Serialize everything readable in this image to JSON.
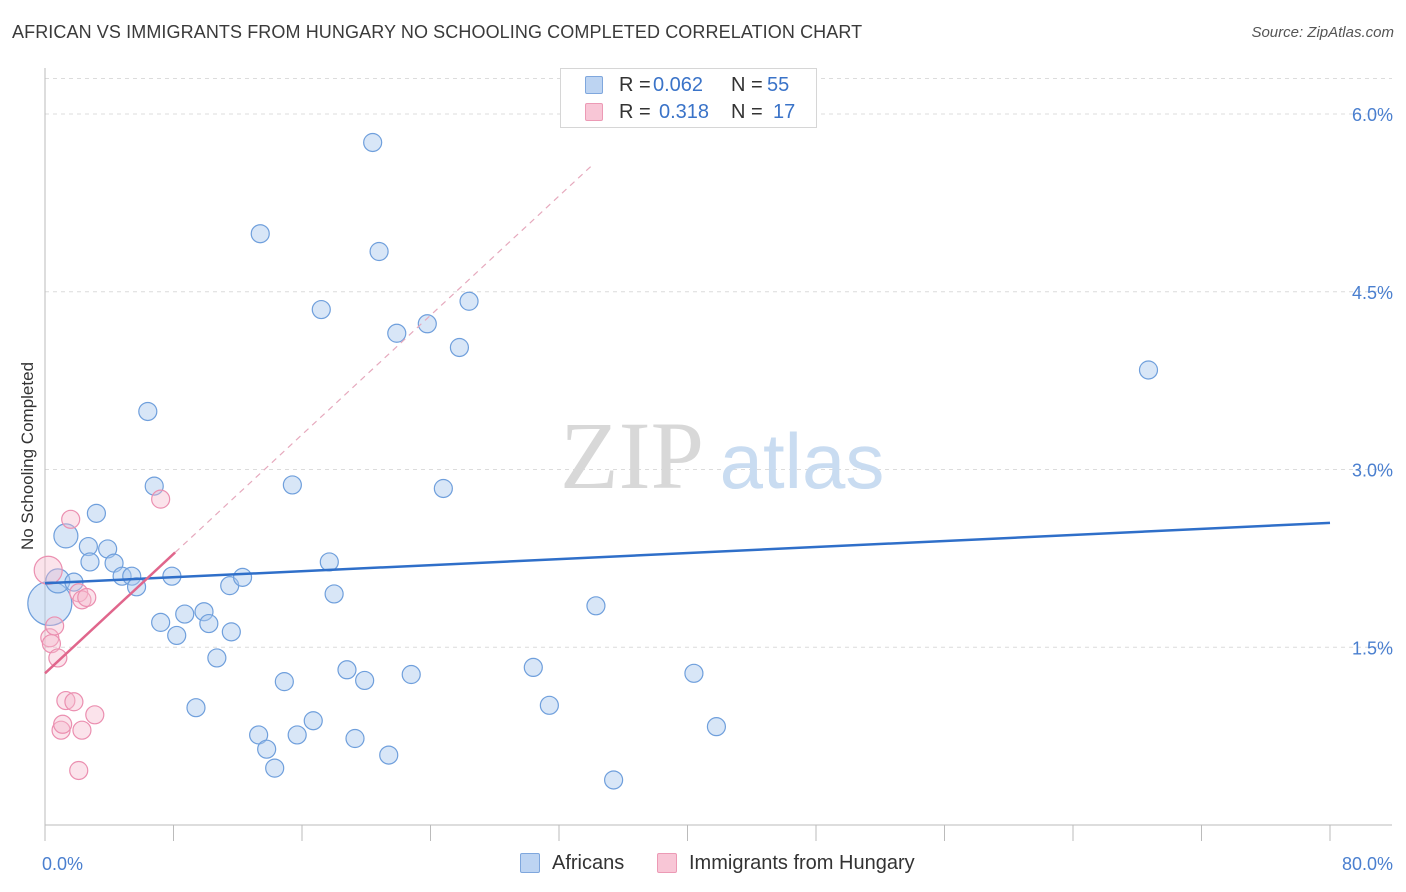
{
  "chart_data": {
    "type": "scatter",
    "title": "AFRICAN VS IMMIGRANTS FROM HUNGARY NO SCHOOLING COMPLETED CORRELATION CHART",
    "source": "Source: ZipAtlas.com",
    "watermark": {
      "zip": "ZIP",
      "atlas": "atlas"
    },
    "ylabel": "No Schooling Completed",
    "xlim": [
      0,
      80
    ],
    "ylim": [
      0,
      6.3
    ],
    "x_tick_labels": [
      "0.0%",
      "80.0%"
    ],
    "y_ticks": [
      {
        "value": 1.5,
        "label": "1.5%"
      },
      {
        "value": 3.0,
        "label": "3.0%"
      },
      {
        "value": 4.5,
        "label": "4.5%"
      },
      {
        "value": 6.0,
        "label": "6.0%"
      }
    ],
    "legend": {
      "africans": {
        "r_label": "R =",
        "r": "0.062",
        "n_label": "N =",
        "n": "55"
      },
      "hungary": {
        "r_label": "R =",
        "r": "0.318",
        "n_label": "N =",
        "n": "17"
      }
    },
    "series": [
      {
        "name": "Africans",
        "color": "#8ab4e6",
        "line_color": "#2f6fc9",
        "trend": {
          "x0": 0,
          "y0": 2.04,
          "x1": 80,
          "y1": 2.55
        },
        "points": [
          [
            0.3,
            1.87,
            22
          ],
          [
            0.8,
            2.06,
            12
          ],
          [
            1.8,
            2.05,
            9
          ],
          [
            1.3,
            2.44,
            12
          ],
          [
            3.2,
            2.63,
            9
          ],
          [
            3.9,
            2.33,
            9
          ],
          [
            2.7,
            2.35,
            9
          ],
          [
            2.8,
            2.22,
            9
          ],
          [
            4.3,
            2.21,
            9
          ],
          [
            4.8,
            2.1,
            9
          ],
          [
            5.4,
            2.1,
            9
          ],
          [
            5.7,
            2.01,
            9
          ],
          [
            6.4,
            3.49,
            9
          ],
          [
            6.8,
            2.86,
            9
          ],
          [
            7.2,
            1.71,
            9
          ],
          [
            7.9,
            2.1,
            9
          ],
          [
            8.2,
            1.6,
            9
          ],
          [
            8.7,
            1.78,
            9
          ],
          [
            9.4,
            0.99,
            9
          ],
          [
            9.9,
            1.8,
            9
          ],
          [
            10.2,
            1.7,
            9
          ],
          [
            10.7,
            1.41,
            9
          ],
          [
            11.6,
            1.63,
            9
          ],
          [
            11.5,
            2.02,
            9
          ],
          [
            12.3,
            2.09,
            9
          ],
          [
            13.3,
            0.76,
            9
          ],
          [
            13.4,
            4.99,
            9
          ],
          [
            13.8,
            0.64,
            9
          ],
          [
            14.3,
            0.48,
            9
          ],
          [
            14.9,
            1.21,
            9
          ],
          [
            15.4,
            2.87,
            9
          ],
          [
            15.7,
            0.76,
            9
          ],
          [
            16.7,
            0.88,
            9
          ],
          [
            17.2,
            4.35,
            9
          ],
          [
            17.7,
            2.22,
            9
          ],
          [
            18.0,
            1.95,
            9
          ],
          [
            18.8,
            1.31,
            9
          ],
          [
            19.3,
            0.73,
            9
          ],
          [
            19.9,
            1.22,
            9
          ],
          [
            20.4,
            5.76,
            9
          ],
          [
            20.8,
            4.84,
            9
          ],
          [
            21.4,
            0.59,
            9
          ],
          [
            21.9,
            4.15,
            9
          ],
          [
            22.8,
            1.27,
            9
          ],
          [
            23.8,
            4.23,
            9
          ],
          [
            24.8,
            2.84,
            9
          ],
          [
            25.8,
            4.03,
            9
          ],
          [
            26.4,
            4.42,
            9
          ],
          [
            30.4,
            1.33,
            9
          ],
          [
            31.4,
            1.01,
            9
          ],
          [
            34.3,
            1.85,
            9
          ],
          [
            35.4,
            0.38,
            9
          ],
          [
            40.4,
            1.28,
            9
          ],
          [
            41.8,
            0.83,
            9
          ],
          [
            68.7,
            3.84,
            9
          ]
        ]
      },
      {
        "name": "Immigrants from Hungary",
        "color": "#f2a0bb",
        "line_color": "#e0668c",
        "trend": {
          "x0": 0,
          "y0": 1.28,
          "x1": 8.1,
          "y1": 2.3
        },
        "trend_extension": {
          "x0": 8.1,
          "y0": 2.3,
          "x1": 34.0,
          "y1": 5.56
        },
        "points": [
          [
            0.2,
            2.15,
            14
          ],
          [
            0.3,
            1.58,
            9
          ],
          [
            0.4,
            1.53,
            9
          ],
          [
            0.6,
            1.68,
            9
          ],
          [
            0.8,
            1.41,
            9
          ],
          [
            1.0,
            0.8,
            9
          ],
          [
            1.1,
            0.85,
            9
          ],
          [
            1.3,
            1.05,
            9
          ],
          [
            1.6,
            2.58,
            9
          ],
          [
            1.8,
            1.04,
            9
          ],
          [
            2.1,
            1.96,
            9
          ],
          [
            2.3,
            1.9,
            9
          ],
          [
            2.1,
            0.46,
            9
          ],
          [
            2.3,
            0.8,
            9
          ],
          [
            2.6,
            1.92,
            9
          ],
          [
            3.1,
            0.93,
            9
          ],
          [
            7.2,
            2.75,
            9
          ]
        ]
      }
    ]
  }
}
